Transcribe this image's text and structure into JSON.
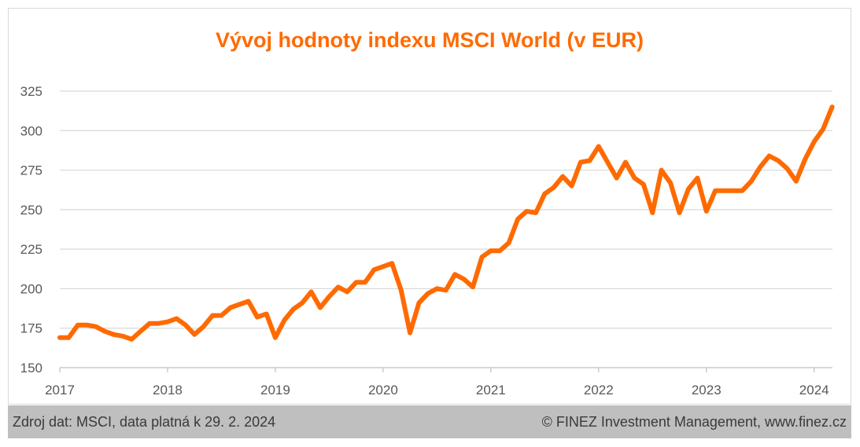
{
  "colors": {
    "line": "#ff6a00",
    "title": "#ff6a00",
    "grid": "#d9d9d9",
    "axis": "#bfbfbf",
    "footer_bg": "#bfbfbf"
  },
  "footer": {
    "source": "Zdroj dat: MSCI, data platná k 29. 2. 2024",
    "copyright": "© FINEZ Investment Management, www.finez.cz"
  },
  "chart_data": {
    "type": "line",
    "title": "Vývoj hodnoty indexu MSCI World (v EUR)",
    "xlabel": "",
    "ylabel": "",
    "ylim": [
      150,
      325
    ],
    "yticks": [
      150,
      175,
      200,
      225,
      250,
      275,
      300,
      325
    ],
    "xlim": [
      2017,
      2024.17
    ],
    "xticks": [
      2017,
      2018,
      2019,
      2020,
      2021,
      2022,
      2023,
      2024
    ],
    "xtick_labels": [
      "2017",
      "2018",
      "2019",
      "2020",
      "2021",
      "2022",
      "2023",
      "2024"
    ],
    "grid": "horizontal",
    "legend": "none",
    "series": [
      {
        "x": [
          2017.0,
          2017.083,
          2017.167,
          2017.25,
          2017.333,
          2017.417,
          2017.5,
          2017.583,
          2017.667,
          2017.75,
          2017.833,
          2017.917,
          2018.0,
          2018.083,
          2018.167,
          2018.25,
          2018.333,
          2018.417,
          2018.5,
          2018.583,
          2018.667,
          2018.75,
          2018.833,
          2018.917,
          2019.0,
          2019.083,
          2019.167,
          2019.25,
          2019.333,
          2019.417,
          2019.5,
          2019.583,
          2019.667,
          2019.75,
          2019.833,
          2019.917,
          2020.0,
          2020.083,
          2020.167,
          2020.25,
          2020.333,
          2020.417,
          2020.5,
          2020.583,
          2020.667,
          2020.75,
          2020.833,
          2020.917,
          2021.0,
          2021.083,
          2021.167,
          2021.25,
          2021.333,
          2021.417,
          2021.5,
          2021.583,
          2021.667,
          2021.75,
          2021.833,
          2021.917,
          2022.0,
          2022.083,
          2022.167,
          2022.25,
          2022.333,
          2022.417,
          2022.5,
          2022.583,
          2022.667,
          2022.75,
          2022.833,
          2022.917,
          2023.0,
          2023.083,
          2023.167,
          2023.25,
          2023.333,
          2023.417,
          2023.5,
          2023.583,
          2023.667,
          2023.75,
          2023.833,
          2023.917,
          2024.0,
          2024.083,
          2024.167
        ],
        "values": [
          169,
          169,
          177,
          177,
          176,
          173,
          171,
          170,
          168,
          173,
          178,
          178,
          179,
          181,
          177,
          171,
          176,
          183,
          183,
          188,
          190,
          192,
          182,
          184,
          169,
          180,
          187,
          191,
          198,
          188,
          195,
          201,
          198,
          204,
          204,
          212,
          214,
          216,
          199,
          172,
          191,
          197,
          200,
          199,
          209,
          206,
          201,
          220,
          224,
          224,
          229,
          244,
          249,
          248,
          260,
          264,
          271,
          265,
          280,
          281,
          290,
          280,
          270,
          280,
          270,
          266,
          248,
          275,
          267,
          248,
          263,
          270,
          249,
          262,
          262,
          262,
          262,
          268,
          277,
          284,
          281,
          276,
          268,
          282,
          293,
          301,
          315
        ]
      }
    ]
  }
}
